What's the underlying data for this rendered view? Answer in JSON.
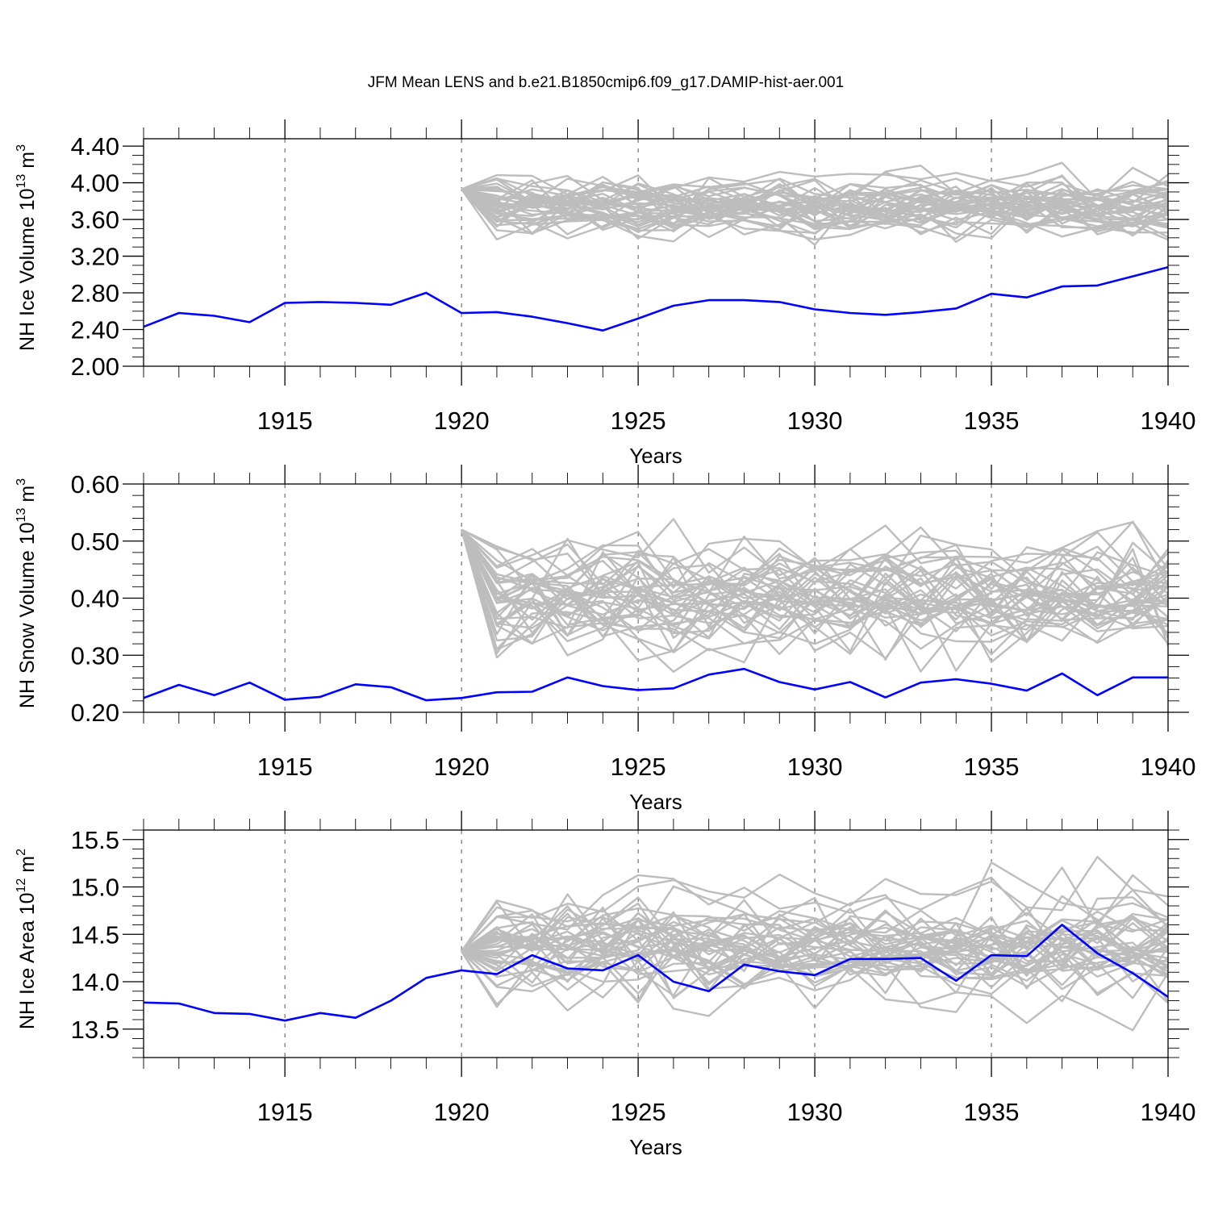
{
  "page_title": "JFM Mean LENS and b.e21.B1850cmip6.f09_g17.DAMIP-hist-aer.001",
  "colors": {
    "ensemble": "#bdbdbd",
    "damip": "#0000ff",
    "axis": "#000000",
    "grid": "#555555"
  },
  "chart_data": [
    {
      "type": "line",
      "title": "NH Ice Volume",
      "ylabel": {
        "text": "NH Ice Volume 10",
        "exp": "13",
        "unit": " m",
        "unit_exp": "3"
      },
      "xlabel": "Years",
      "xlim": [
        1911,
        1940
      ],
      "ylim": [
        2.0,
        4.48
      ],
      "yticks": [
        2.0,
        2.4,
        2.8,
        3.2,
        3.6,
        4.0,
        4.4
      ],
      "ytick_labels": [
        "2.00",
        "2.40",
        "2.80",
        "3.20",
        "3.60",
        "4.00",
        "4.40"
      ],
      "yminor": 0.1,
      "xticks": [
        1915,
        1920,
        1925,
        1930,
        1935,
        1940
      ],
      "xtick_labels": [
        "1915",
        "1920",
        "1925",
        "1930",
        "1935",
        "1940"
      ],
      "grid_x": [
        1915,
        1920,
        1925,
        1930,
        1935
      ],
      "series": [
        {
          "name": "b.e21.B1850cmip6.f09_g17.DAMIP-hist-aer.001",
          "color": "#0000ff",
          "x": [
            1911,
            1912,
            1913,
            1914,
            1915,
            1916,
            1917,
            1918,
            1919,
            1920,
            1921,
            1922,
            1923,
            1924,
            1925,
            1926,
            1927,
            1928,
            1929,
            1930,
            1931,
            1932,
            1933,
            1934,
            1935,
            1936,
            1937,
            1938,
            1939,
            1940
          ],
          "values": [
            2.43,
            2.58,
            2.55,
            2.48,
            2.69,
            2.7,
            2.69,
            2.67,
            2.8,
            2.58,
            2.59,
            2.54,
            2.47,
            2.39,
            2.52,
            2.66,
            2.72,
            2.72,
            2.7,
            2.62,
            2.58,
            2.56,
            2.59,
            2.63,
            2.79,
            2.75,
            2.87,
            2.88,
            2.98,
            3.08
          ]
        }
      ],
      "ensemble": {
        "name": "LENS",
        "color": "#bdbdbd",
        "start_year": 1920,
        "start_value": 3.93,
        "members": 40,
        "mean": 3.74,
        "spread": 0.14,
        "seed": 11
      }
    },
    {
      "type": "line",
      "title": "NH Snow Volume",
      "ylabel": {
        "text": "NH Snow Volume 10",
        "exp": "13",
        "unit": " m",
        "unit_exp": "3"
      },
      "xlabel": "Years",
      "xlim": [
        1911,
        1940
      ],
      "ylim": [
        0.2,
        0.6
      ],
      "yticks": [
        0.2,
        0.3,
        0.4,
        0.5,
        0.6
      ],
      "ytick_labels": [
        "0.20",
        "0.30",
        "0.40",
        "0.50",
        "0.60"
      ],
      "yminor": 0.02,
      "xticks": [
        1915,
        1920,
        1925,
        1930,
        1935,
        1940
      ],
      "xtick_labels": [
        "1915",
        "1920",
        "1925",
        "1930",
        "1935",
        "1940"
      ],
      "grid_x": [
        1915,
        1920,
        1925,
        1930,
        1935
      ],
      "series": [
        {
          "name": "b.e21.B1850cmip6.f09_g17.DAMIP-hist-aer.001",
          "color": "#0000ff",
          "x": [
            1911,
            1912,
            1913,
            1914,
            1915,
            1916,
            1917,
            1918,
            1919,
            1920,
            1921,
            1922,
            1923,
            1924,
            1925,
            1926,
            1927,
            1928,
            1929,
            1930,
            1931,
            1932,
            1933,
            1934,
            1935,
            1936,
            1937,
            1938,
            1939,
            1940
          ],
          "values": [
            0.225,
            0.248,
            0.23,
            0.252,
            0.222,
            0.227,
            0.249,
            0.244,
            0.221,
            0.225,
            0.235,
            0.236,
            0.261,
            0.246,
            0.239,
            0.242,
            0.266,
            0.276,
            0.253,
            0.24,
            0.253,
            0.226,
            0.252,
            0.258,
            0.25,
            0.238,
            0.268,
            0.23,
            0.261,
            0.261
          ]
        }
      ],
      "ensemble": {
        "name": "LENS",
        "color": "#bdbdbd",
        "start_year": 1920,
        "start_value": 0.52,
        "members": 40,
        "mean": 0.4,
        "spread": 0.045,
        "seed": 23
      }
    },
    {
      "type": "line",
      "title": "NH Ice Area",
      "ylabel": {
        "text": "NH Ice Area 10",
        "exp": "12",
        "unit": " m",
        "unit_exp": "2"
      },
      "xlabel": "Years",
      "xlim": [
        1911,
        1940
      ],
      "ylim": [
        13.2,
        15.6
      ],
      "yticks": [
        13.5,
        14.0,
        14.5,
        15.0,
        15.5
      ],
      "ytick_labels": [
        "13.5",
        "14.0",
        "14.5",
        "15.0",
        "15.5"
      ],
      "yminor": 0.1,
      "xticks": [
        1915,
        1920,
        1925,
        1930,
        1935,
        1940
      ],
      "xtick_labels": [
        "1915",
        "1920",
        "1925",
        "1930",
        "1935",
        "1940"
      ],
      "grid_x": [
        1915,
        1920,
        1925,
        1930,
        1935
      ],
      "series": [
        {
          "name": "b.e21.B1850cmip6.f09_g17.DAMIP-hist-aer.001",
          "color": "#0000ff",
          "x": [
            1911,
            1912,
            1913,
            1914,
            1915,
            1916,
            1917,
            1918,
            1919,
            1920,
            1921,
            1922,
            1923,
            1924,
            1925,
            1926,
            1927,
            1928,
            1929,
            1930,
            1931,
            1932,
            1933,
            1934,
            1935,
            1936,
            1937,
            1938,
            1939,
            1940
          ],
          "values": [
            13.78,
            13.77,
            13.67,
            13.66,
            13.59,
            13.67,
            13.62,
            13.8,
            14.04,
            14.12,
            14.08,
            14.28,
            14.14,
            14.12,
            14.28,
            14.0,
            13.9,
            14.18,
            14.11,
            14.07,
            14.24,
            14.24,
            14.25,
            14.01,
            14.28,
            14.27,
            14.6,
            14.3,
            14.09,
            13.84
          ]
        }
      ],
      "ensemble": {
        "name": "LENS",
        "color": "#bdbdbd",
        "start_year": 1920,
        "start_value": 14.32,
        "members": 40,
        "mean": 14.4,
        "spread": 0.24,
        "seed": 37
      }
    }
  ]
}
